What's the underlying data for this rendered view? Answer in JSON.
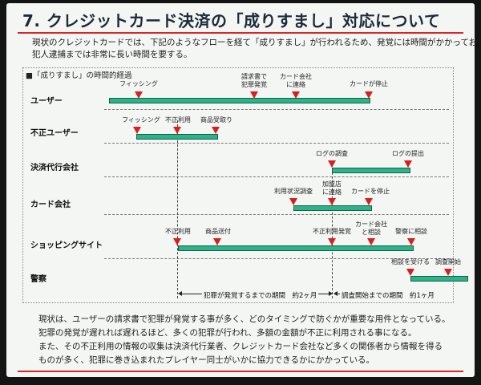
{
  "title": "7. クレジットカード決済の「成りすまし」対応について",
  "intro": [
    "現状のクレジットカードでは、下記のようなフローを経て「成りすまし」が行われるため、発覚には時間がかかっており",
    "犯人逮捕までは非常に長い時間を要する。"
  ],
  "diagram_caption": "■「成りすまし」の時間的経過",
  "rows": {
    "user": "ユーザー",
    "fraudster": "不正ユーザー",
    "payment_agent": "決済代行会社",
    "card_company": "カード会社",
    "shop": "ショッピングサイト",
    "police": "警察"
  },
  "events": {
    "u1": "フィッシング",
    "u2": "請求書で\n犯罪発覚",
    "u3": "カード会社\nに連絡",
    "u4": "カードが停止",
    "f1": "フィッシング",
    "f2": "不正利用",
    "f3": "商品受取り",
    "p1": "ログの調査",
    "p2": "ログの提出",
    "c1": "利用状況調査",
    "c2": "加盟店\nに連絡",
    "c3": "カードを停止",
    "s1": "不正利用",
    "s2": "商品送付",
    "s3": "不正利用発覚",
    "s4": "カード会社\nと相談",
    "s5": "警察に相談",
    "pl1": "相談を受ける",
    "pl2": "調査開始"
  },
  "periods": {
    "p1": "犯罪が発覚するまでの期間　約2ヶ月",
    "p2": "調査開始までの期間　約1ヶ月"
  },
  "summary": [
    "現状は、ユーザーの請求書で犯罪が発覚する事が多く、どのタイミングで防ぐかが重要な用件となっている。",
    "犯罪の発覚が遅れれば遅れるほど、多くの犯罪が行われ、多額の金額が不正に利用される事になる。",
    "また、その不正利用の情報の収集は決済代行業者、クレジットカード会社など多くの関係者から情報を得る",
    "ものが多く、犯罪に巻き込まれたプレイヤー同士がいかに協力できるかにかかっている。"
  ],
  "colors": {
    "accent": "#d9262a",
    "bar": "#2bb38a",
    "marker": "#d81e1e"
  }
}
